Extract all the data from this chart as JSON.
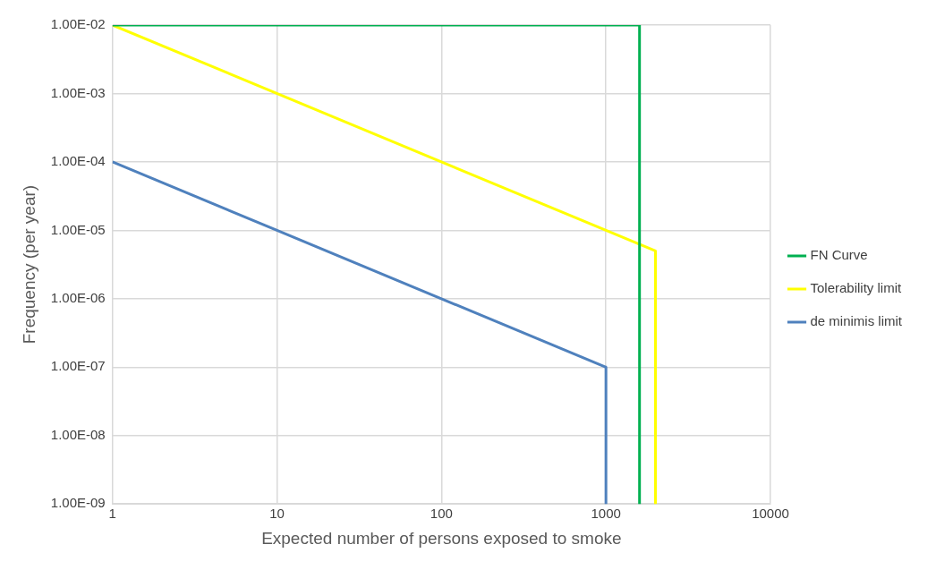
{
  "chart_data": {
    "type": "line",
    "xlabel": "Expected number of persons exposed to smoke",
    "ylabel": "Frequency (per year)",
    "log": "xy",
    "xlim": [
      1,
      10000
    ],
    "xticks": [
      1,
      10,
      100,
      1000,
      10000
    ],
    "ylim": [
      1e-09,
      0.01
    ],
    "yticks": [
      {
        "value": 1e-09,
        "label": "1.00E-09"
      },
      {
        "value": 1e-08,
        "label": "1.00E-08"
      },
      {
        "value": 1e-07,
        "label": "1.00E-07"
      },
      {
        "value": 1e-06,
        "label": "1.00E-06"
      },
      {
        "value": 1e-05,
        "label": "1.00E-05"
      },
      {
        "value": 0.0001,
        "label": "1.00E-04"
      },
      {
        "value": 0.001,
        "label": "1.00E-03"
      },
      {
        "value": 0.01,
        "label": "1.00E-02"
      }
    ],
    "grid": true,
    "legend": "right",
    "marker": "none",
    "series": [
      {
        "name": "FN Curve",
        "color": "#00b050",
        "x": [
          1,
          1600,
          1600
        ],
        "values": [
          0.01,
          0.01,
          1e-09
        ]
      },
      {
        "name": "Tolerability limit",
        "color": "#ffff00",
        "x": [
          1,
          2000,
          2000
        ],
        "values": [
          0.01,
          5e-06,
          1e-09
        ]
      },
      {
        "name": "de minimis limit",
        "color": "#4f81bd",
        "x": [
          1,
          1000,
          1000
        ],
        "values": [
          0.0001,
          1e-07,
          1e-09
        ]
      }
    ]
  }
}
